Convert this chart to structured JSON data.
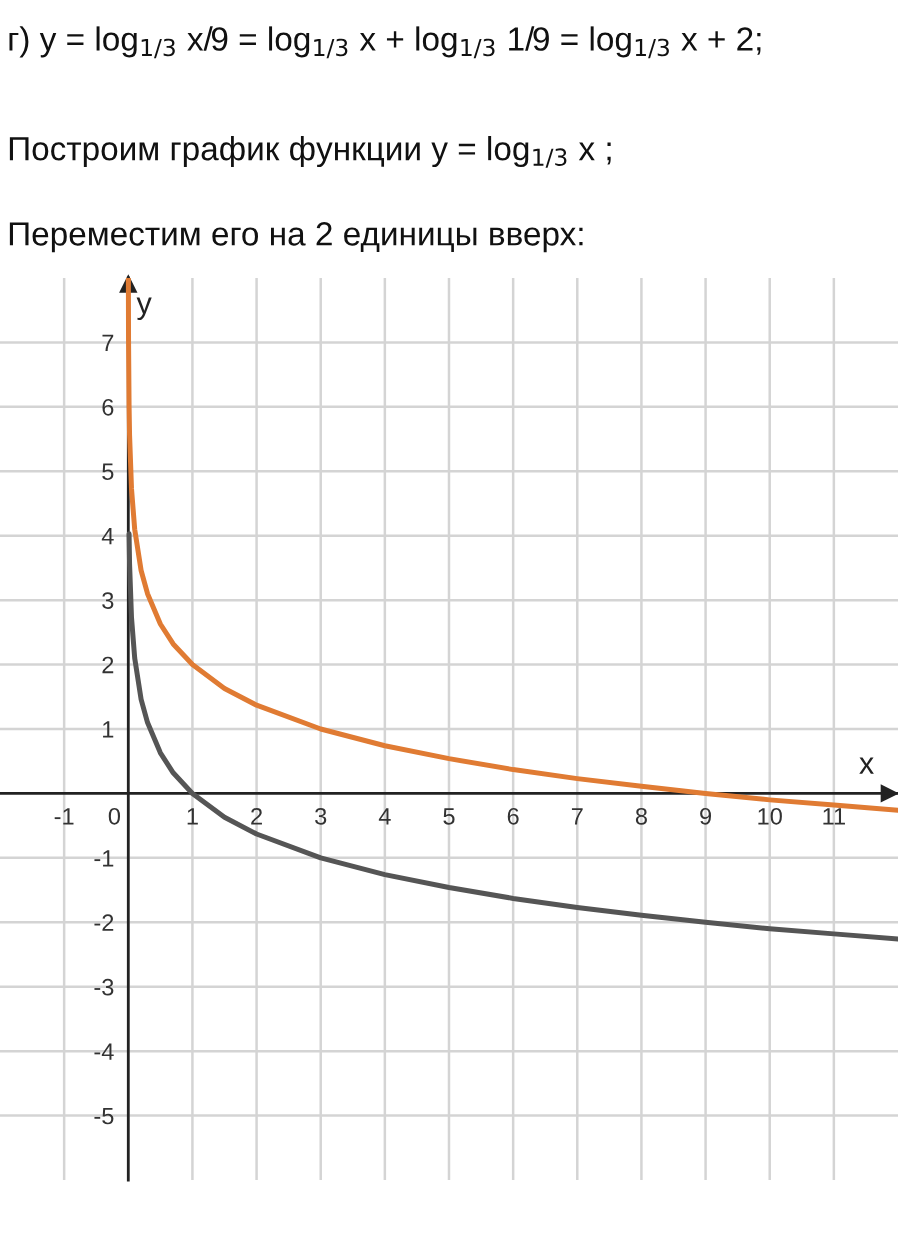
{
  "chart_data": {
    "type": "line",
    "annotations": [
      "г) y = log$_{1/3}$ x/9 = log$_{1/3}$ x + log$_{1/3}$ 1/9 = log$_{1/3}$ x + 2;",
      "Построим график функции y = log$_{1/3}$ x ;",
      "Переместим его на 2 единицы вверх:"
    ],
    "xlabel": "x",
    "ylabel": "y",
    "xlim": [
      -2,
      12
    ],
    "ylim": [
      -6,
      8
    ],
    "xticks": [
      -1,
      0,
      1,
      2,
      3,
      4,
      5,
      6,
      7,
      8,
      9,
      10,
      11
    ],
    "yticks": [
      -5,
      -4,
      -3,
      -2,
      -1,
      1,
      2,
      3,
      4,
      5,
      6,
      7
    ],
    "grid": true,
    "series": [
      {
        "color": "#555555",
        "x": [
          0.012,
          0.02,
          0.05,
          0.1,
          0.2,
          0.3,
          0.5,
          0.7,
          1,
          1.5,
          2,
          3,
          4,
          5,
          6,
          7,
          8,
          9,
          10,
          11,
          12
        ],
        "values": [
          4.03,
          3.56,
          2.73,
          2.1,
          1.46,
          1.1,
          0.63,
          0.32,
          0,
          -0.37,
          -0.63,
          -1,
          -1.26,
          -1.46,
          -1.63,
          -1.77,
          -1.89,
          -2,
          -2.1,
          -2.18,
          -2.26
        ]
      },
      {
        "color": "#e07b33",
        "x": [
          0.0014,
          0.004,
          0.012,
          0.02,
          0.05,
          0.1,
          0.2,
          0.3,
          0.5,
          0.7,
          1,
          1.5,
          2,
          3,
          4,
          5,
          6,
          7,
          8,
          9,
          10,
          11,
          12
        ],
        "values": [
          7.98,
          7.03,
          6.03,
          5.56,
          4.73,
          4.1,
          3.46,
          3.1,
          2.63,
          2.32,
          2,
          1.63,
          1.37,
          1,
          0.74,
          0.54,
          0.37,
          0.23,
          0.11,
          0,
          -0.1,
          -0.18,
          -0.26
        ]
      }
    ]
  }
}
